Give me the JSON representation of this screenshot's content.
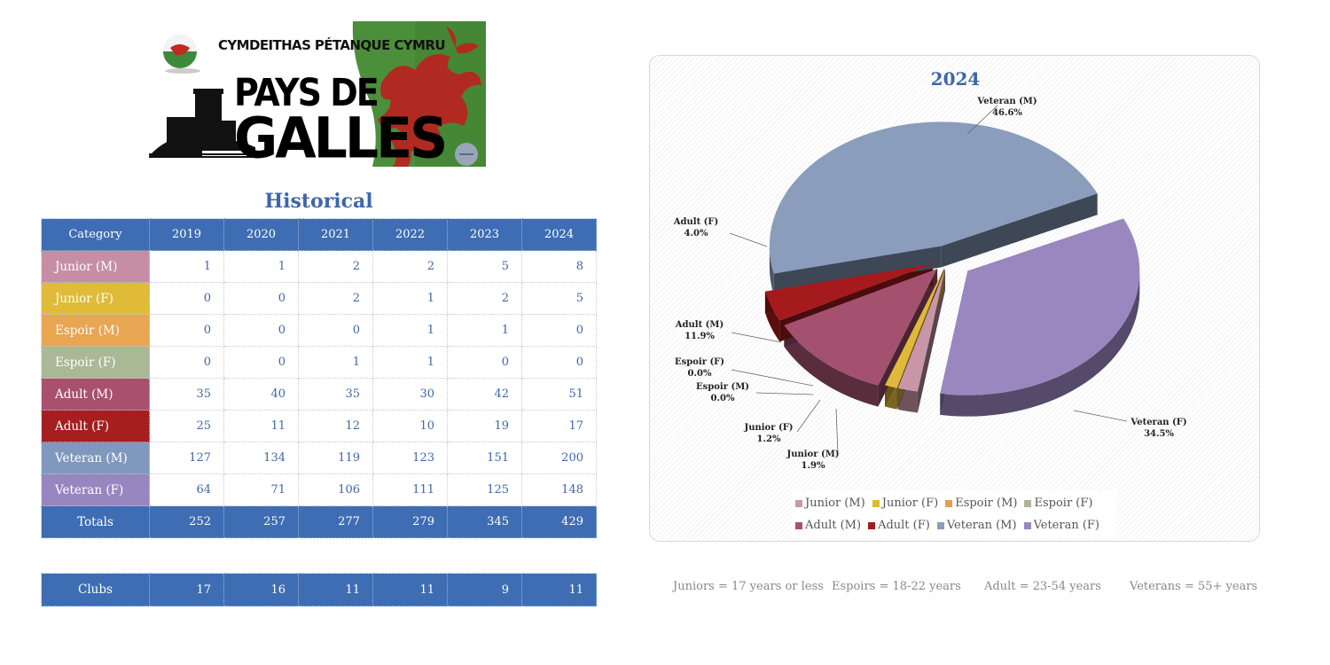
{
  "logo": {
    "org_name": "CYMDEITHAS PÉTANQUE CYMRU",
    "line1": "PAYS DE",
    "line2": "GALLES"
  },
  "table": {
    "title": "Historical",
    "header": [
      "Category",
      "2019",
      "2020",
      "2021",
      "2022",
      "2023",
      "2024"
    ],
    "rows": [
      {
        "category": "Junior (M)",
        "color": "#c68ea4",
        "values": [
          "1",
          "1",
          "2",
          "2",
          "5",
          "8"
        ]
      },
      {
        "category": "Junior (F)",
        "color": "#e0bb37",
        "values": [
          "0",
          "0",
          "2",
          "1",
          "2",
          "5"
        ]
      },
      {
        "category": "Espoir (M)",
        "color": "#e8a552",
        "values": [
          "0",
          "0",
          "0",
          "1",
          "1",
          "0"
        ]
      },
      {
        "category": "Espoir (F)",
        "color": "#a9b895",
        "values": [
          "0",
          "0",
          "1",
          "1",
          "0",
          "0"
        ]
      },
      {
        "category": "Adult (M)",
        "color": "#a8506e",
        "values": [
          "35",
          "40",
          "35",
          "30",
          "42",
          "51"
        ]
      },
      {
        "category": "Adult (F)",
        "color": "#a61e20",
        "values": [
          "25",
          "11",
          "12",
          "10",
          "19",
          "17"
        ]
      },
      {
        "category": "Veteran (M)",
        "color": "#8198be",
        "values": [
          "127",
          "134",
          "119",
          "123",
          "151",
          "200"
        ]
      },
      {
        "category": "Veteran (F)",
        "color": "#9886c1",
        "values": [
          "64",
          "71",
          "106",
          "111",
          "125",
          "148"
        ]
      }
    ],
    "totals": {
      "category": "Totals",
      "values": [
        "252",
        "257",
        "277",
        "279",
        "345",
        "429"
      ]
    },
    "clubs": {
      "category": "Clubs",
      "values": [
        "17",
        "16",
        "11",
        "11",
        "9",
        "11"
      ]
    }
  },
  "chart_data": {
    "type": "pie",
    "title": "2024",
    "categories": [
      "Junior (M)",
      "Junior (F)",
      "Espoir (M)",
      "Espoir (F)",
      "Adult (M)",
      "Adult (F)",
      "Veteran (M)",
      "Veteran (F)"
    ],
    "values": [
      8,
      5,
      0,
      0,
      51,
      17,
      200,
      148
    ],
    "percent_labels": [
      "1.9%",
      "1.2%",
      "0.0%",
      "0.0%",
      "11.9%",
      "4.0%",
      "46.6%",
      "34.5%"
    ],
    "colors": [
      "#c896a8",
      "#e0b93a",
      "#e3a04c",
      "#a9b894",
      "#a3516f",
      "#a51a1d",
      "#8a9dbd",
      "#9a87c0"
    ],
    "style": "3d-exploded",
    "legend": "bottom"
  },
  "notes": [
    "Juniors = 17 years or less",
    "Espoirs = 18-22 years",
    "Adult = 23-54 years",
    "Veterans = 55+ years"
  ]
}
